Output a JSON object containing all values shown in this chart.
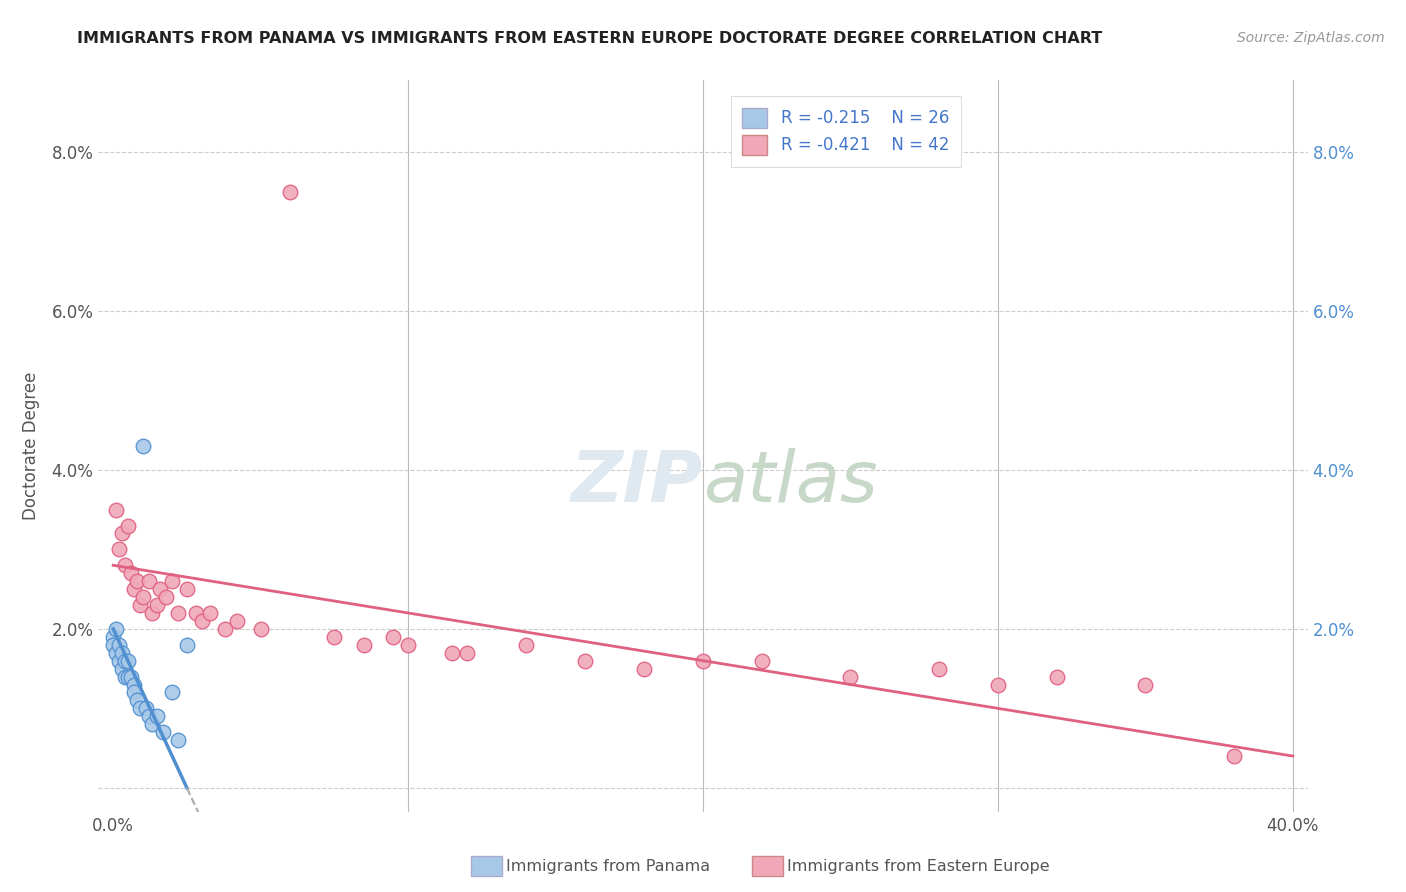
{
  "title": "IMMIGRANTS FROM PANAMA VS IMMIGRANTS FROM EASTERN EUROPE DOCTORATE DEGREE CORRELATION CHART",
  "source": "Source: ZipAtlas.com",
  "ylabel": "Doctorate Degree",
  "x_label_bottom_text": "Immigrants from Panama",
  "x_label_bottom_text2": "Immigrants from Eastern Europe",
  "legend_r1": "R = -0.215",
  "legend_n1": "N = 26",
  "legend_r2": "R = -0.421",
  "legend_n2": "N = 42",
  "xlim": [
    -0.005,
    0.405
  ],
  "ylim": [
    -0.003,
    0.089
  ],
  "xticks": [
    0.0,
    0.1,
    0.2,
    0.3,
    0.4
  ],
  "yticks": [
    0.0,
    0.02,
    0.04,
    0.06,
    0.08
  ],
  "ytick_labels_left": [
    "",
    "2.0%",
    "4.0%",
    "6.0%",
    "8.0%"
  ],
  "ytick_labels_right": [
    "",
    "2.0%",
    "4.0%",
    "6.0%",
    "8.0%"
  ],
  "xtick_labels": [
    "0.0%",
    "",
    "",
    "",
    "40.0%"
  ],
  "color_blue": "#a8c8e8",
  "color_pink": "#f0a8b8",
  "color_blue_line": "#5090d0",
  "color_pink_line": "#e06080",
  "title_color": "#222222",
  "source_color": "#999999",
  "grid_color": "#cccccc",
  "blue_scatter_x": [
    0.0,
    0.0,
    0.001,
    0.001,
    0.002,
    0.002,
    0.003,
    0.003,
    0.004,
    0.004,
    0.005,
    0.005,
    0.006,
    0.007,
    0.007,
    0.008,
    0.009,
    0.01,
    0.011,
    0.012,
    0.013,
    0.015,
    0.017,
    0.02,
    0.022,
    0.025
  ],
  "blue_scatter_y": [
    0.019,
    0.018,
    0.02,
    0.017,
    0.018,
    0.016,
    0.017,
    0.015,
    0.016,
    0.014,
    0.016,
    0.014,
    0.014,
    0.013,
    0.012,
    0.011,
    0.01,
    0.043,
    0.01,
    0.009,
    0.008,
    0.009,
    0.007,
    0.012,
    0.006,
    0.018
  ],
  "pink_scatter_x": [
    0.001,
    0.002,
    0.003,
    0.004,
    0.005,
    0.006,
    0.007,
    0.008,
    0.009,
    0.01,
    0.012,
    0.013,
    0.015,
    0.016,
    0.018,
    0.02,
    0.022,
    0.025,
    0.028,
    0.03,
    0.033,
    0.038,
    0.042,
    0.05,
    0.06,
    0.075,
    0.085,
    0.095,
    0.1,
    0.115,
    0.12,
    0.14,
    0.16,
    0.18,
    0.2,
    0.22,
    0.25,
    0.28,
    0.3,
    0.32,
    0.35,
    0.38
  ],
  "pink_scatter_y": [
    0.035,
    0.03,
    0.032,
    0.028,
    0.033,
    0.027,
    0.025,
    0.026,
    0.023,
    0.024,
    0.026,
    0.022,
    0.023,
    0.025,
    0.024,
    0.026,
    0.022,
    0.025,
    0.022,
    0.021,
    0.022,
    0.02,
    0.021,
    0.02,
    0.075,
    0.019,
    0.018,
    0.019,
    0.018,
    0.017,
    0.017,
    0.018,
    0.016,
    0.015,
    0.016,
    0.016,
    0.014,
    0.015,
    0.013,
    0.014,
    0.013,
    0.004
  ],
  "blue_trend_x0": 0.0,
  "blue_trend_x1": 0.025,
  "blue_trend_y0": 0.02,
  "blue_trend_y1": 0.0,
  "pink_trend_x0": 0.0,
  "pink_trend_x1": 0.4,
  "pink_trend_y0": 0.028,
  "pink_trend_y1": 0.004,
  "marker_size": 110,
  "background_color": "#ffffff",
  "watermark_text": "ZIPatlas",
  "watermark_color": "#e0e8f0"
}
